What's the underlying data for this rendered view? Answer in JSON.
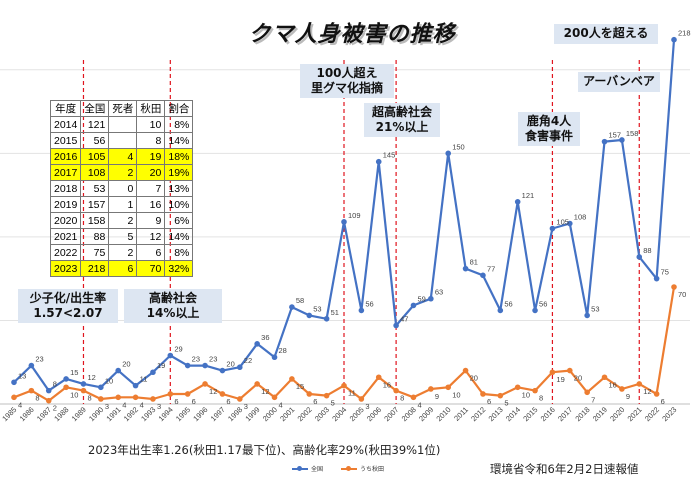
{
  "title": "クマ人身被害の推移",
  "chart_data": {
    "type": "line",
    "x": [
      "1985",
      "1986",
      "1987",
      "1988",
      "1989",
      "1990",
      "1991",
      "1992",
      "1993",
      "1994",
      "1995",
      "1996",
      "1997",
      "1998",
      "1999",
      "2000",
      "2001",
      "2002",
      "2003",
      "2004",
      "2005",
      "2006",
      "2007",
      "2008",
      "2009",
      "2010",
      "2011",
      "2012",
      "2013",
      "2014",
      "2015",
      "2016",
      "2017",
      "2018",
      "2019",
      "2020",
      "2021",
      "2022",
      "2023"
    ],
    "series": [
      {
        "name": "全国",
        "color": "#4472c4",
        "values": [
          13,
          23,
          8,
          15,
          12,
          10,
          20,
          11,
          19,
          29,
          23,
          23,
          20,
          22,
          36,
          28,
          58,
          53,
          51,
          109,
          56,
          145,
          47,
          59,
          63,
          150,
          81,
          77,
          56,
          121,
          56,
          105,
          108,
          53,
          157,
          158,
          88,
          75,
          218
        ]
      },
      {
        "name": "うち秋田",
        "color": "#ed7d31",
        "values": [
          4,
          8,
          2,
          10,
          8,
          3,
          4,
          4,
          3,
          6,
          6,
          12,
          6,
          3,
          12,
          4,
          15,
          6,
          5,
          11,
          3,
          16,
          8,
          4,
          9,
          10,
          20,
          6,
          5,
          10,
          8,
          19,
          20,
          7,
          16,
          9,
          12,
          6,
          70
        ]
      }
    ],
    "ylim": [
      0,
      225
    ],
    "grid": true,
    "legend": "bottom"
  },
  "callouts": [
    {
      "text": "少子化/出生率\n1.57<2.07"
    },
    {
      "text": "高齢社会\n14%以上"
    },
    {
      "text": "100人超え\n里グマ化指摘"
    },
    {
      "text": "超高齢社会\n21%以上"
    },
    {
      "text": "鹿角4人\n食害事件"
    },
    {
      "text": "アーバンベア"
    },
    {
      "text": "200人を超える"
    }
  ],
  "event_years": [
    "1989",
    "1994",
    "2004",
    "2007",
    "2016",
    "2021"
  ],
  "table": {
    "headers": [
      "年度",
      "全国",
      "死者",
      "秋田",
      "割合"
    ],
    "rows": [
      {
        "year": "2014",
        "total": "121",
        "deaths": "",
        "akita": "10",
        "ratio": "8%",
        "highlight": false
      },
      {
        "year": "2015",
        "total": "56",
        "deaths": "",
        "akita": "8",
        "ratio": "14%",
        "highlight": false
      },
      {
        "year": "2016",
        "total": "105",
        "deaths": "4",
        "akita": "19",
        "ratio": "18%",
        "highlight": true
      },
      {
        "year": "2017",
        "total": "108",
        "deaths": "2",
        "akita": "20",
        "ratio": "19%",
        "highlight": true
      },
      {
        "year": "2018",
        "total": "53",
        "deaths": "0",
        "akita": "7",
        "ratio": "13%",
        "highlight": false
      },
      {
        "year": "2019",
        "total": "157",
        "deaths": "1",
        "akita": "16",
        "ratio": "10%",
        "highlight": false
      },
      {
        "year": "2020",
        "total": "158",
        "deaths": "2",
        "akita": "9",
        "ratio": "6%",
        "highlight": false
      },
      {
        "year": "2021",
        "total": "88",
        "deaths": "5",
        "akita": "12",
        "ratio": "14%",
        "highlight": false
      },
      {
        "year": "2022",
        "total": "75",
        "deaths": "2",
        "akita": "6",
        "ratio": "8%",
        "highlight": false
      },
      {
        "year": "2023",
        "total": "218",
        "deaths": "6",
        "akita": "70",
        "ratio": "32%",
        "highlight": true
      }
    ]
  },
  "footnote": "2023年出生率1.26(秋田1.17最下位)、高齢化率29%(秋田39%1位)",
  "source": "環境省令和6年2月2日速報値"
}
